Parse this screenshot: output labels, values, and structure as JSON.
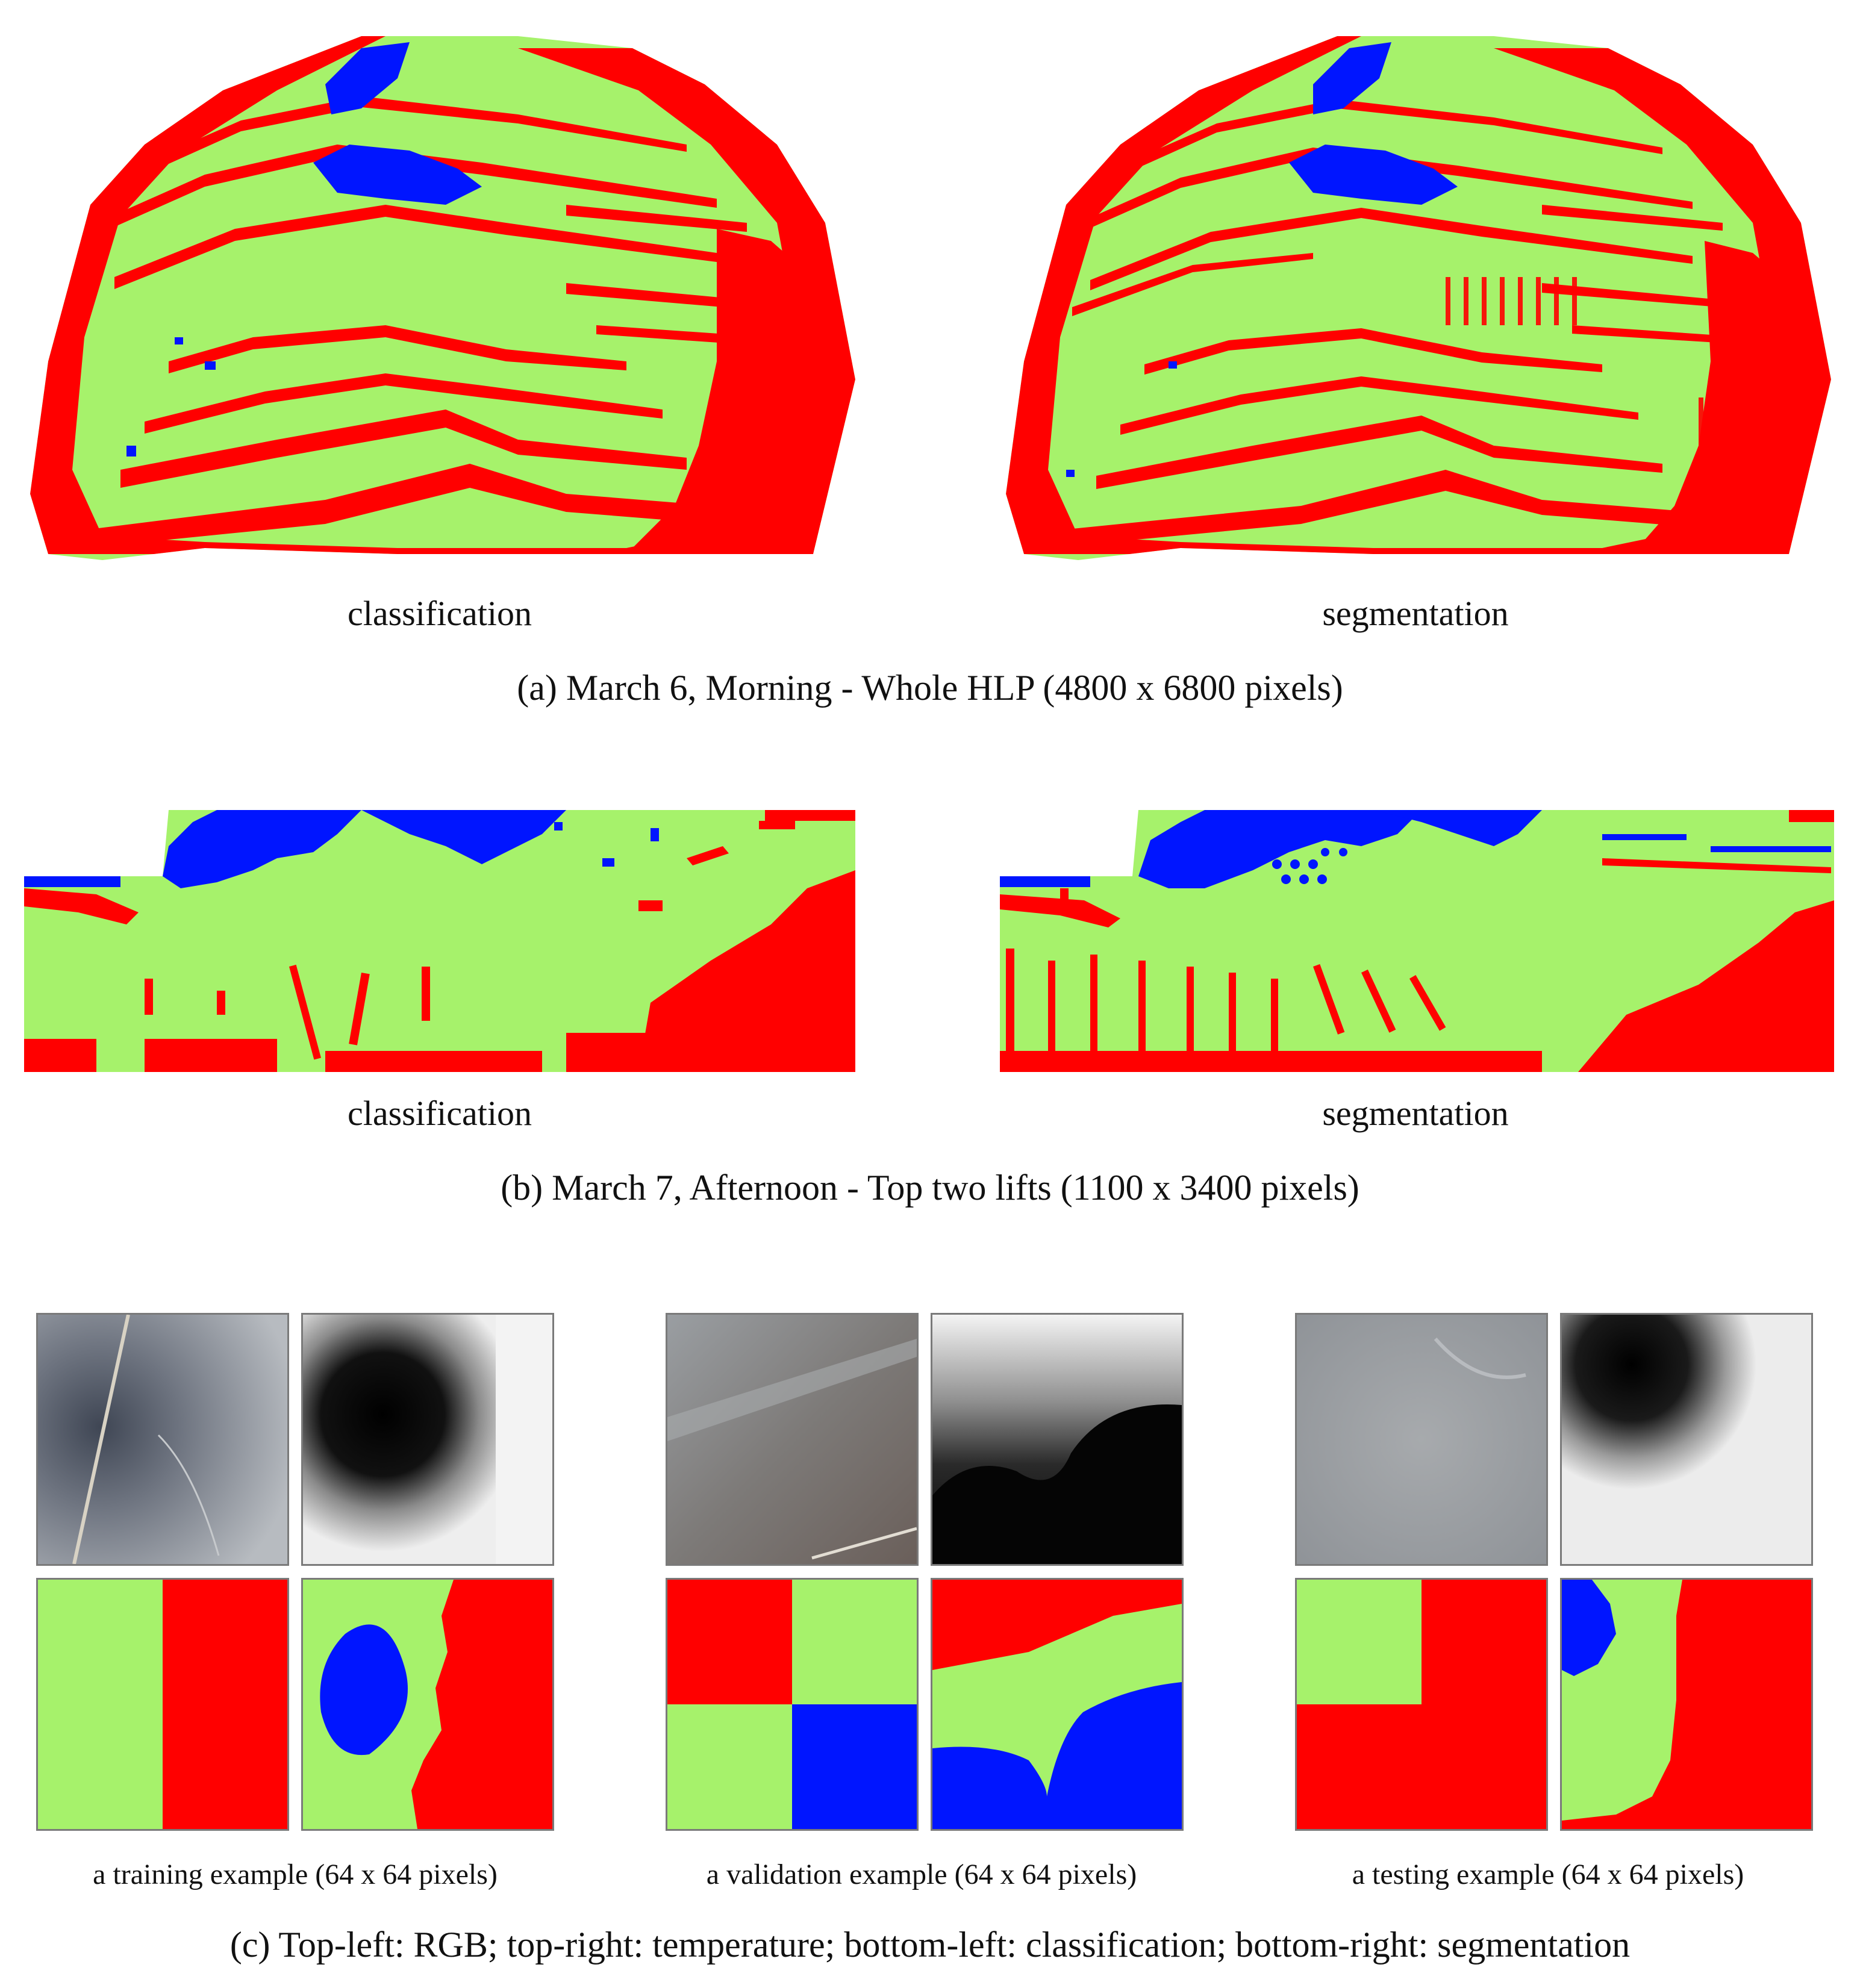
{
  "colors": {
    "green": "#a6f26b",
    "red": "#ff0000",
    "blue": "#0015ff"
  },
  "section_a": {
    "left_label": "classification",
    "right_label": "segmentation",
    "caption": "(a) March 6, Morning - Whole HLP (4800 x 6800 pixels)"
  },
  "section_b": {
    "left_label": "classification",
    "right_label": "segmentation",
    "caption": "(b) March 7, Afternoon - Top two lifts (1100 x 3400 pixels)"
  },
  "section_c": {
    "examples": [
      {
        "label": "a training example (64 x 64 pixels)"
      },
      {
        "label": "a validation example (64 x 64 pixels)"
      },
      {
        "label": "a testing example (64 x 64 pixels)"
      }
    ],
    "caption": "(c) Top-left: RGB; top-right: temperature; bottom-left: classification; bottom-right: segmentation"
  }
}
